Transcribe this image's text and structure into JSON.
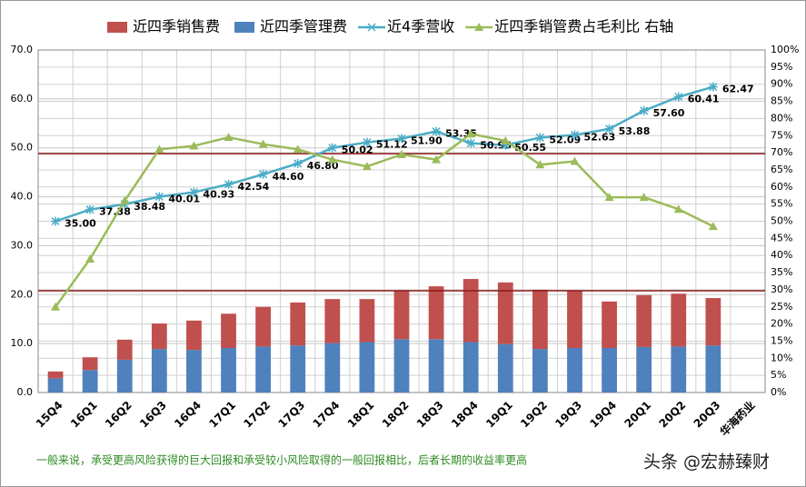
{
  "chart_data": {
    "type": "bar",
    "categories": [
      "15Q4",
      "16Q1",
      "16Q2",
      "16Q3",
      "16Q4",
      "17Q1",
      "17Q2",
      "17Q3",
      "17Q4",
      "18Q1",
      "18Q2",
      "18Q3",
      "18Q4",
      "19Q1",
      "19Q2",
      "19Q3",
      "19Q4",
      "20Q1",
      "20Q2",
      "20Q3",
      "华海药业"
    ],
    "series": [
      {
        "name": "近四季销售费",
        "type": "bar",
        "color": "#c0504d",
        "values": [
          1.4,
          2.6,
          4.1,
          5.2,
          6.0,
          7.0,
          8.1,
          8.8,
          9.0,
          8.8,
          10.0,
          10.8,
          12.9,
          12.6,
          12.1,
          11.8,
          9.5,
          10.6,
          10.8,
          9.7,
          null
        ]
      },
      {
        "name": "近四季管理费",
        "type": "bar",
        "color": "#4f81bd",
        "values": [
          2.9,
          4.6,
          6.7,
          8.9,
          8.7,
          9.1,
          9.4,
          9.6,
          10.1,
          10.3,
          10.9,
          10.9,
          10.3,
          9.9,
          8.9,
          9.1,
          9.1,
          9.3,
          9.4,
          9.6,
          null
        ]
      },
      {
        "name": "近4季营收",
        "type": "line",
        "color": "#4bacc6",
        "values": [
          35.0,
          37.38,
          38.48,
          40.01,
          40.93,
          42.54,
          44.6,
          46.8,
          50.02,
          51.12,
          51.9,
          53.35,
          50.95,
          50.55,
          52.09,
          52.63,
          53.88,
          57.6,
          60.41,
          62.47,
          null
        ],
        "value_labels": [
          "35.00",
          "37.38",
          "38.48",
          "40.01",
          "40.93",
          "42.54",
          "44.60",
          "46.80",
          "50.02",
          "51.12",
          "51.90",
          "53.35",
          "50.95",
          "50.55",
          "52.09",
          "52.63",
          "53.88",
          "57.60",
          "60.41",
          "62.47",
          null
        ]
      },
      {
        "name": "近四季销管费占毛利比 右轴",
        "type": "line",
        "axis": "y2",
        "color": "#9bbb59",
        "values": [
          25,
          39,
          56,
          71,
          72,
          74.5,
          72.5,
          71,
          68,
          66,
          69.5,
          68,
          75.5,
          73.5,
          66.5,
          67.5,
          57,
          57,
          53.5,
          48.5,
          null
        ]
      }
    ],
    "ref_lines": [
      48.8,
      20.8
    ],
    "ref_color": "#8b1a1a",
    "ylim": [
      0,
      70
    ],
    "yticks": [
      {
        "value": 0,
        "label": "0.0"
      },
      {
        "value": 10,
        "label": "10.0"
      },
      {
        "value": 20,
        "label": "20.0"
      },
      {
        "value": 30,
        "label": "30.0"
      },
      {
        "value": 40,
        "label": "40.0"
      },
      {
        "value": 50,
        "label": "50.0"
      },
      {
        "value": 60,
        "label": "60.0"
      },
      {
        "value": 70,
        "label": "70.0"
      }
    ],
    "y2lim": [
      0,
      100
    ],
    "y2ticks": [
      {
        "value": 0,
        "label": "0%"
      },
      {
        "value": 5,
        "label": "5%"
      },
      {
        "value": 10,
        "label": "10%"
      },
      {
        "value": 15,
        "label": "15%"
      },
      {
        "value": 20,
        "label": "20%"
      },
      {
        "value": 25,
        "label": "25%"
      },
      {
        "value": 30,
        "label": "30%"
      },
      {
        "value": 35,
        "label": "35%"
      },
      {
        "value": 40,
        "label": "40%"
      },
      {
        "value": 45,
        "label": "45%"
      },
      {
        "value": 50,
        "label": "50%"
      },
      {
        "value": 55,
        "label": "55%"
      },
      {
        "value": 60,
        "label": "60%"
      },
      {
        "value": 65,
        "label": "65%"
      },
      {
        "value": 70,
        "label": "70%"
      },
      {
        "value": 75,
        "label": "75%"
      },
      {
        "value": 80,
        "label": "80%"
      },
      {
        "value": 85,
        "label": "85%"
      },
      {
        "value": 90,
        "label": "90%"
      },
      {
        "value": 95,
        "label": "95%"
      },
      {
        "value": 100,
        "label": "100%"
      }
    ],
    "grid": true,
    "legend": "top",
    "footnote": "一般来说，承受更高风险获得的巨大回报和承受较小风险取得的一般回报相比，后者长期的收益率更高",
    "watermark": "头条 @宏赫臻财"
  }
}
